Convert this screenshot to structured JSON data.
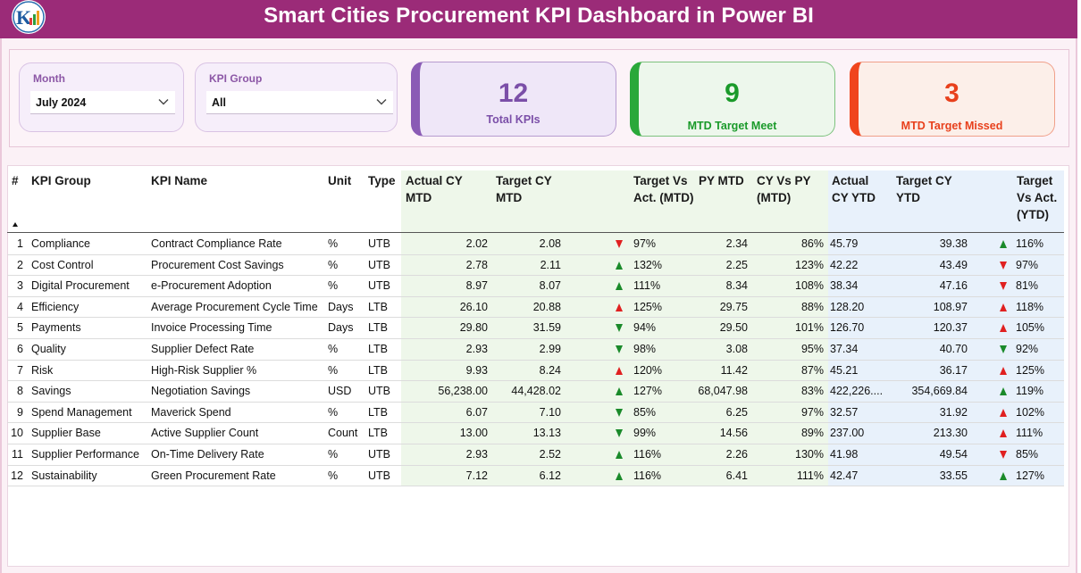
{
  "header": {
    "title": "Smart Cities Procurement KPI Dashboard in Power BI"
  },
  "colors": {
    "brand": "#9b2b78",
    "green": "#1a8a2a",
    "red": "#e02020",
    "purple": "#7b4fa8"
  },
  "filters": {
    "month": {
      "label": "Month",
      "value": "July 2024"
    },
    "kpi_group": {
      "label": "KPI Group",
      "value": "All"
    }
  },
  "cards": {
    "total": {
      "value": "12",
      "label": "Total KPIs"
    },
    "met": {
      "value": "9",
      "label": "MTD Target Meet"
    },
    "missed": {
      "value": "3",
      "label": "MTD Target Missed"
    }
  },
  "table": {
    "headers": {
      "num": "#",
      "kpi_group": "KPI Group",
      "kpi_name": "KPI Name",
      "unit": "Unit",
      "type": "Type",
      "actual_cy_mtd": "Actual CY MTD",
      "target_cy_mtd": "Target CY MTD",
      "target_vs_act_mtd": "Target Vs Act. (MTD)",
      "py_mtd": "PY MTD",
      "cy_vs_py_mtd": "CY Vs PY (MTD)",
      "actual_cy_ytd": "Actual CY YTD",
      "target_cy_ytd": "Target CY YTD",
      "target_vs_act_ytd": "Target Vs Act. (YTD)"
    },
    "rows": [
      {
        "num": "1",
        "group": "Compliance",
        "name": "Contract Compliance Rate",
        "unit": "%",
        "type": "UTB",
        "act_mtd": "2.02",
        "tgt_mtd": "2.08",
        "mtd_icon": "down-red",
        "mtd_pct": "97%",
        "py_mtd": "2.34",
        "cy_py": "86%",
        "act_ytd": "45.79",
        "tgt_ytd": "39.38",
        "ytd_icon": "up-green",
        "ytd_pct": "116%"
      },
      {
        "num": "2",
        "group": "Cost Control",
        "name": "Procurement Cost Savings",
        "unit": "%",
        "type": "UTB",
        "act_mtd": "2.78",
        "tgt_mtd": "2.11",
        "mtd_icon": "up-green",
        "mtd_pct": "132%",
        "py_mtd": "2.25",
        "cy_py": "123%",
        "act_ytd": "42.22",
        "tgt_ytd": "43.49",
        "ytd_icon": "down-red",
        "ytd_pct": "97%"
      },
      {
        "num": "3",
        "group": "Digital Procurement",
        "name": "e-Procurement Adoption",
        "unit": "%",
        "type": "UTB",
        "act_mtd": "8.97",
        "tgt_mtd": "8.07",
        "mtd_icon": "up-green",
        "mtd_pct": "111%",
        "py_mtd": "8.34",
        "cy_py": "108%",
        "act_ytd": "38.34",
        "tgt_ytd": "47.16",
        "ytd_icon": "down-red",
        "ytd_pct": "81%"
      },
      {
        "num": "4",
        "group": "Efficiency",
        "name": "Average Procurement Cycle Time",
        "unit": "Days",
        "type": "LTB",
        "act_mtd": "26.10",
        "tgt_mtd": "20.88",
        "mtd_icon": "up-red",
        "mtd_pct": "125%",
        "py_mtd": "29.75",
        "cy_py": "88%",
        "act_ytd": "128.20",
        "tgt_ytd": "108.97",
        "ytd_icon": "up-red",
        "ytd_pct": "118%"
      },
      {
        "num": "5",
        "group": "Payments",
        "name": "Invoice Processing Time",
        "unit": "Days",
        "type": "LTB",
        "act_mtd": "29.80",
        "tgt_mtd": "31.59",
        "mtd_icon": "down-green",
        "mtd_pct": "94%",
        "py_mtd": "29.50",
        "cy_py": "101%",
        "act_ytd": "126.70",
        "tgt_ytd": "120.37",
        "ytd_icon": "up-red",
        "ytd_pct": "105%"
      },
      {
        "num": "6",
        "group": "Quality",
        "name": "Supplier Defect Rate",
        "unit": "%",
        "type": "LTB",
        "act_mtd": "2.93",
        "tgt_mtd": "2.99",
        "mtd_icon": "down-green",
        "mtd_pct": "98%",
        "py_mtd": "3.08",
        "cy_py": "95%",
        "act_ytd": "37.34",
        "tgt_ytd": "40.70",
        "ytd_icon": "down-green",
        "ytd_pct": "92%"
      },
      {
        "num": "7",
        "group": "Risk",
        "name": "High-Risk Supplier %",
        "unit": "%",
        "type": "LTB",
        "act_mtd": "9.93",
        "tgt_mtd": "8.24",
        "mtd_icon": "up-red",
        "mtd_pct": "120%",
        "py_mtd": "11.42",
        "cy_py": "87%",
        "act_ytd": "45.21",
        "tgt_ytd": "36.17",
        "ytd_icon": "up-red",
        "ytd_pct": "125%"
      },
      {
        "num": "8",
        "group": "Savings",
        "name": "Negotiation Savings",
        "unit": "USD",
        "type": "UTB",
        "act_mtd": "56,238.00",
        "tgt_mtd": "44,428.02",
        "mtd_icon": "up-green",
        "mtd_pct": "127%",
        "py_mtd": "68,047.98",
        "cy_py": "83%",
        "act_ytd": "422,226....",
        "tgt_ytd": "354,669.84",
        "ytd_icon": "up-green",
        "ytd_pct": "119%"
      },
      {
        "num": "9",
        "group": "Spend Management",
        "name": "Maverick Spend",
        "unit": "%",
        "type": "LTB",
        "act_mtd": "6.07",
        "tgt_mtd": "7.10",
        "mtd_icon": "down-green",
        "mtd_pct": "85%",
        "py_mtd": "6.25",
        "cy_py": "97%",
        "act_ytd": "32.57",
        "tgt_ytd": "31.92",
        "ytd_icon": "up-red",
        "ytd_pct": "102%"
      },
      {
        "num": "10",
        "group": "Supplier Base",
        "name": "Active Supplier Count",
        "unit": "Count",
        "type": "LTB",
        "act_mtd": "13.00",
        "tgt_mtd": "13.13",
        "mtd_icon": "down-green",
        "mtd_pct": "99%",
        "py_mtd": "14.56",
        "cy_py": "89%",
        "act_ytd": "237.00",
        "tgt_ytd": "213.30",
        "ytd_icon": "up-red",
        "ytd_pct": "111%"
      },
      {
        "num": "11",
        "group": "Supplier Performance",
        "name": "On-Time Delivery Rate",
        "unit": "%",
        "type": "UTB",
        "act_mtd": "2.93",
        "tgt_mtd": "2.52",
        "mtd_icon": "up-green",
        "mtd_pct": "116%",
        "py_mtd": "2.26",
        "cy_py": "130%",
        "act_ytd": "41.98",
        "tgt_ytd": "49.54",
        "ytd_icon": "down-red",
        "ytd_pct": "85%"
      },
      {
        "num": "12",
        "group": "Sustainability",
        "name": "Green Procurement Rate",
        "unit": "%",
        "type": "UTB",
        "act_mtd": "7.12",
        "tgt_mtd": "6.12",
        "mtd_icon": "up-green",
        "mtd_pct": "116%",
        "py_mtd": "6.41",
        "cy_py": "111%",
        "act_ytd": "42.47",
        "tgt_ytd": "33.55",
        "ytd_icon": "up-green",
        "ytd_pct": "127%"
      }
    ]
  }
}
